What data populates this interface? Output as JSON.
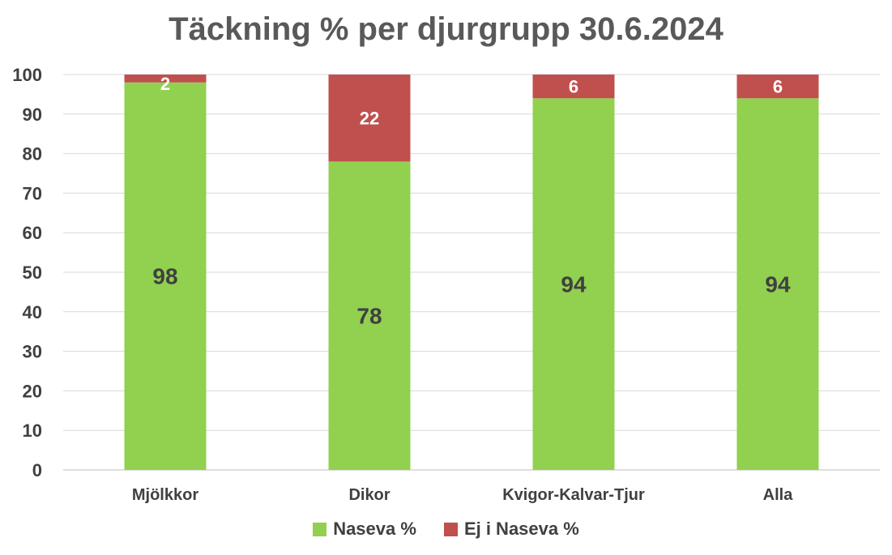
{
  "chart_data": {
    "type": "bar",
    "stacked": true,
    "title": "Täckning % per djurgrupp 30.6.2024",
    "categories": [
      "Mjölkkor",
      "Dikor",
      "Kvigor-Kalvar-Tjur",
      "Alla"
    ],
    "series": [
      {
        "name": "Naseva %",
        "values": [
          98,
          78,
          94,
          94
        ],
        "color": "#92D050",
        "label_color": "#404040"
      },
      {
        "name": "Ej i Naseva %",
        "values": [
          2,
          22,
          6,
          6
        ],
        "color": "#C0504D",
        "label_color": "#FFFFFF"
      }
    ],
    "ylim": [
      0,
      100
    ],
    "yticks": [
      "0",
      "10",
      "20",
      "30",
      "40",
      "50",
      "60",
      "70",
      "80",
      "90",
      "100"
    ],
    "grid": true,
    "legend_position": "bottom"
  }
}
